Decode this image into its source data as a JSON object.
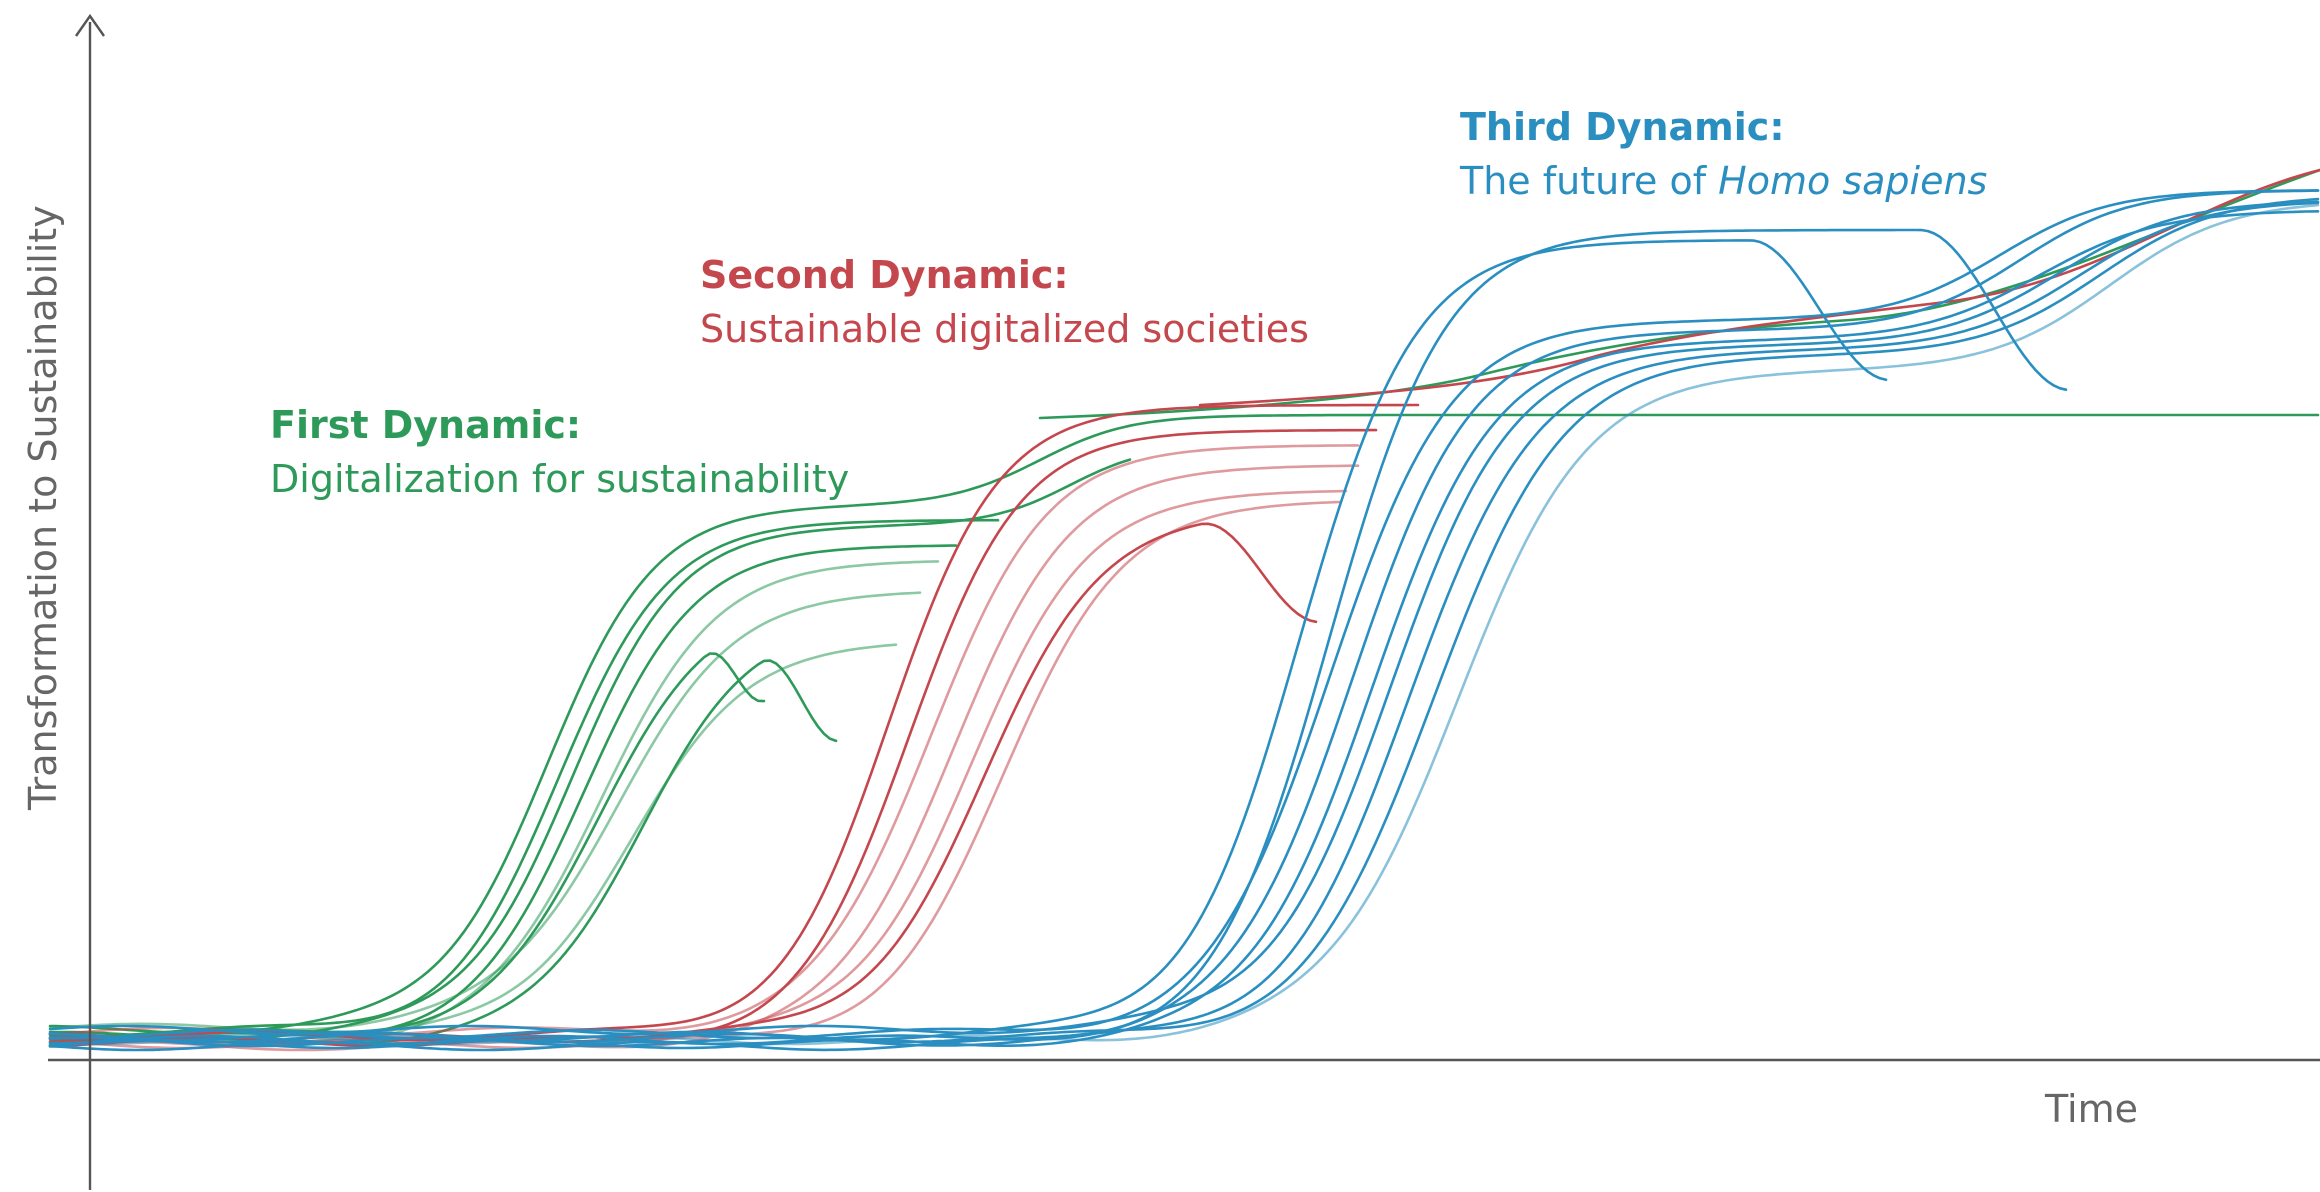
{
  "colors": {
    "axis": "#555555",
    "axis_label": "#666666",
    "first": "#2e9a5a",
    "second": "#c4474e",
    "third": "#2a8fc0"
  },
  "axes": {
    "y_label": "Transformation to Sustainability",
    "x_label": "Time"
  },
  "dynamics": [
    {
      "key": "first",
      "title": "First Dynamic:",
      "subtitle_parts": [
        {
          "text": "Digitalization for sustainability",
          "italic": false
        }
      ]
    },
    {
      "key": "second",
      "title": "Second Dynamic:",
      "subtitle_parts": [
        {
          "text": "Sustainable digitalized societies",
          "italic": false
        }
      ]
    },
    {
      "key": "third",
      "title": "Third Dynamic:",
      "subtitle_parts": [
        {
          "text": "The future of ",
          "italic": false
        },
        {
          "text": "Homo sapiens",
          "italic": true
        }
      ]
    }
  ]
}
